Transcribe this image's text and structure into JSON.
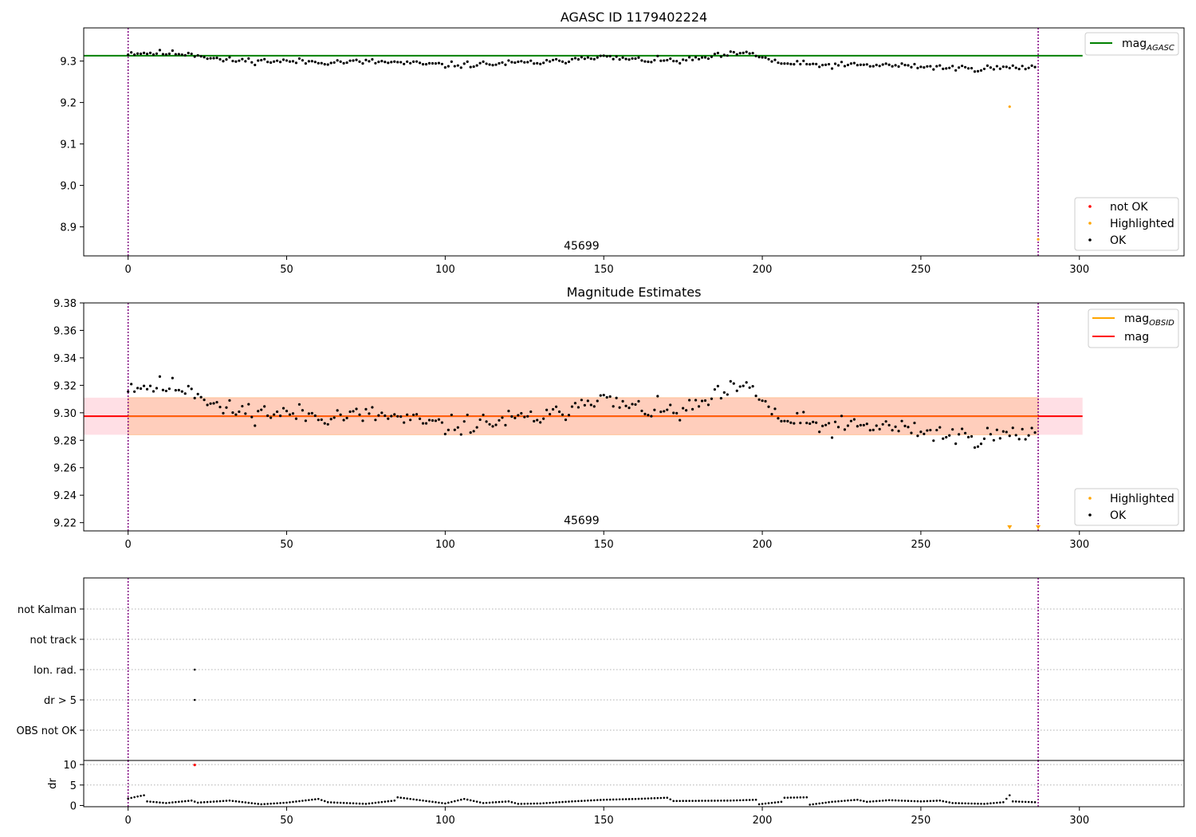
{
  "chart_data": [
    {
      "type": "scatter",
      "title": "AGASC ID 1179402224",
      "xlim": [
        -14,
        333
      ],
      "ylim": [
        8.83,
        9.38
      ],
      "xticks": [
        0,
        50,
        100,
        150,
        200,
        250,
        300
      ],
      "yticks": [
        8.9,
        9.0,
        9.1,
        9.2,
        9.3
      ],
      "ytick_labels": [
        "8.9",
        "9.0",
        "9.1",
        "9.2",
        "9.3"
      ],
      "mag_agasc": 9.313,
      "mag_agasc_xmax": 301,
      "obsid_boundaries": [
        0,
        287
      ],
      "annotation": {
        "text": "45699",
        "x": 143,
        "y": 8.845
      },
      "highlighted_points": [
        {
          "x": 278,
          "y": 9.19
        },
        {
          "x": 287,
          "y": 8.87
        }
      ],
      "ok_seed": 11,
      "ok_x_range": [
        0,
        286
      ],
      "ok_trend": [
        [
          0,
          9.32
        ],
        [
          20,
          9.318
        ],
        [
          30,
          9.302
        ],
        [
          60,
          9.298
        ],
        [
          80,
          9.298
        ],
        [
          100,
          9.29
        ],
        [
          110,
          9.292
        ],
        [
          135,
          9.298
        ],
        [
          145,
          9.312
        ],
        [
          160,
          9.303
        ],
        [
          175,
          9.3
        ],
        [
          190,
          9.316
        ],
        [
          197,
          9.318
        ],
        [
          205,
          9.295
        ],
        [
          220,
          9.29
        ],
        [
          240,
          9.29
        ],
        [
          265,
          9.282
        ],
        [
          286,
          9.285
        ]
      ],
      "ok_scatter": 0.011,
      "legend_upper": [
        {
          "label": "mag",
          "subscript": "AGASC",
          "color": "#008000"
        }
      ],
      "legend_lower": [
        {
          "label": "not OK",
          "color": "#ff0000"
        },
        {
          "label": "Highlighted",
          "color": "#ffa500"
        },
        {
          "label": "OK",
          "color": "#000000"
        }
      ]
    },
    {
      "type": "scatter",
      "title": "Magnitude Estimates",
      "xlim": [
        -14,
        333
      ],
      "ylim": [
        9.214,
        9.38
      ],
      "xticks": [
        0,
        50,
        100,
        150,
        200,
        250,
        300
      ],
      "yticks": [
        9.22,
        9.24,
        9.26,
        9.28,
        9.3,
        9.32,
        9.34,
        9.36,
        9.38
      ],
      "ytick_labels": [
        "9.22",
        "9.24",
        "9.26",
        "9.28",
        "9.30",
        "9.32",
        "9.34",
        "9.36",
        "9.38"
      ],
      "mag": 9.2975,
      "mag_band": [
        9.284,
        9.311
      ],
      "mag_obsid_band": [
        9.284,
        9.311
      ],
      "mag_xmax": 301,
      "obsid_boundaries": [
        0,
        287
      ],
      "annotation": {
        "text": "45699",
        "x": 143,
        "y": 9.219
      },
      "offscale_markers": [
        {
          "x": 278
        },
        {
          "x": 287
        }
      ],
      "ok_seed": 11,
      "ok_x_range": [
        0,
        286
      ],
      "ok_trend": [
        [
          0,
          9.32
        ],
        [
          20,
          9.318
        ],
        [
          30,
          9.302
        ],
        [
          60,
          9.298
        ],
        [
          80,
          9.298
        ],
        [
          100,
          9.29
        ],
        [
          110,
          9.292
        ],
        [
          135,
          9.298
        ],
        [
          145,
          9.312
        ],
        [
          160,
          9.303
        ],
        [
          175,
          9.3
        ],
        [
          190,
          9.316
        ],
        [
          197,
          9.318
        ],
        [
          205,
          9.295
        ],
        [
          220,
          9.29
        ],
        [
          240,
          9.29
        ],
        [
          265,
          9.282
        ],
        [
          286,
          9.285
        ]
      ],
      "ok_scatter": 0.011,
      "legend_upper": [
        {
          "label": "mag",
          "subscript": "OBSID",
          "color": "#ffa500"
        },
        {
          "label": "mag",
          "subscript": "",
          "color": "#ff0000"
        }
      ],
      "legend_lower": [
        {
          "label": "Highlighted",
          "color": "#ffa500"
        },
        {
          "label": "OK",
          "color": "#000000"
        }
      ]
    },
    {
      "type": "scatter",
      "xlim": [
        -14,
        333
      ],
      "xticks": [
        0,
        50,
        100,
        150,
        200,
        250,
        300
      ],
      "flag_categories": [
        "not Kalman",
        "not track",
        "Ion. rad.",
        "dr > 5",
        "OBS not OK"
      ],
      "flag_points": [
        {
          "x": 21,
          "category": "Ion. rad."
        },
        {
          "x": 21,
          "category": "dr > 5"
        }
      ],
      "obsid_boundaries": [
        0,
        287
      ]
    },
    {
      "type": "scatter",
      "ylabel": "dr",
      "xlim": [
        -14,
        333
      ],
      "ylim": [
        -0.3,
        11
      ],
      "xticks": [
        0,
        50,
        100,
        150,
        200,
        250,
        300
      ],
      "yticks": [
        0,
        5,
        10
      ],
      "ytick_labels": [
        "0",
        "5",
        "10"
      ],
      "dr_trend": [
        [
          0,
          1.7
        ],
        [
          3,
          2.2
        ],
        [
          5,
          2.5
        ],
        [
          6,
          1.0
        ],
        [
          12,
          0.6
        ],
        [
          20,
          1.2
        ],
        [
          22,
          0.7
        ],
        [
          32,
          1.2
        ],
        [
          42,
          0.3
        ],
        [
          50,
          0.7
        ],
        [
          60,
          1.6
        ],
        [
          63,
          0.8
        ],
        [
          75,
          0.4
        ],
        [
          84,
          1.2
        ],
        [
          85,
          2.0
        ],
        [
          95,
          1.0
        ],
        [
          100,
          0.5
        ],
        [
          106,
          1.6
        ],
        [
          112,
          0.6
        ],
        [
          120,
          1.0
        ],
        [
          123,
          0.4
        ],
        [
          130,
          0.5
        ],
        [
          140,
          1.0
        ],
        [
          150,
          1.4
        ],
        [
          160,
          1.6
        ],
        [
          170,
          1.9
        ],
        [
          172,
          1.1
        ],
        [
          190,
          1.2
        ],
        [
          198,
          1.4
        ],
        [
          199,
          0.3
        ],
        [
          206,
          0.9
        ],
        [
          207,
          1.9
        ],
        [
          214,
          2.0
        ],
        [
          215,
          0.2
        ],
        [
          222,
          0.9
        ],
        [
          230,
          1.4
        ],
        [
          233,
          0.9
        ],
        [
          240,
          1.3
        ],
        [
          250,
          1.0
        ],
        [
          256,
          1.2
        ],
        [
          260,
          0.6
        ],
        [
          270,
          0.4
        ],
        [
          276,
          0.8
        ],
        [
          278,
          2.5
        ],
        [
          279,
          1.0
        ],
        [
          286,
          0.8
        ]
      ],
      "notok_points": [
        {
          "x": 21,
          "y": 9.9
        }
      ],
      "obsid_boundaries": [
        0,
        287
      ]
    }
  ]
}
